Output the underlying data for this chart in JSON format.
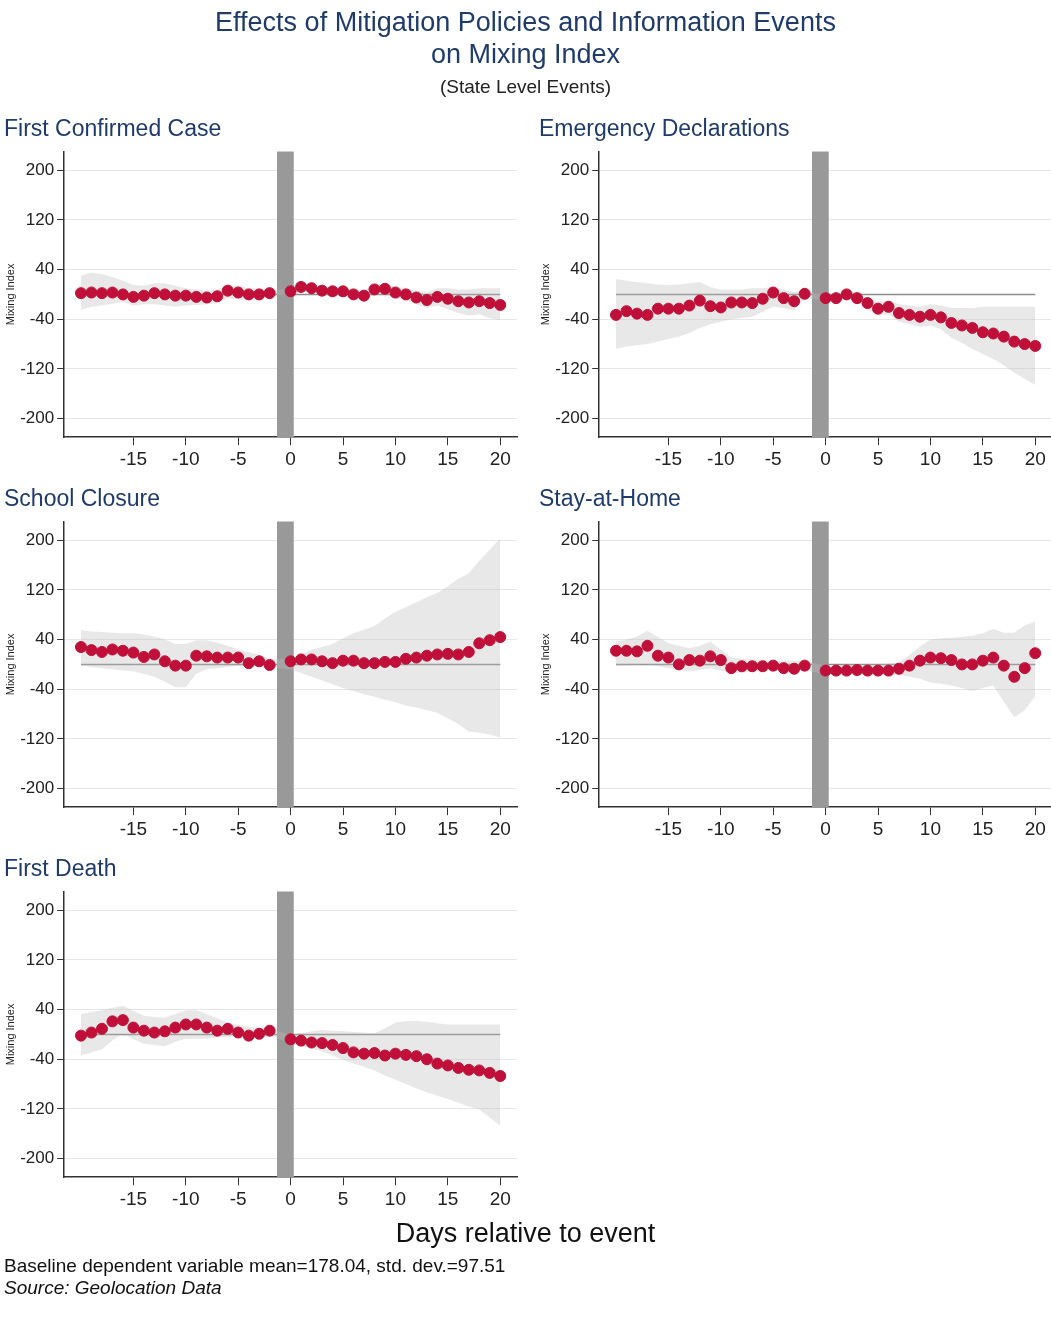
{
  "chart_data": [
    {
      "type": "other",
      "title": "Effects of Mitigation Policies and Information Events\non Mixing Index",
      "subtitle": "(State Level Events)"
    },
    {
      "type": "scatter",
      "title": "First Confirmed Case",
      "ylabel": "Mixing Index",
      "x": [
        -20,
        -19,
        -18,
        -17,
        -16,
        -15,
        -14,
        -13,
        -12,
        -11,
        -10,
        -9,
        -8,
        -7,
        -6,
        -5,
        -4,
        -3,
        -2,
        0,
        1,
        2,
        3,
        4,
        5,
        6,
        7,
        8,
        9,
        10,
        11,
        12,
        13,
        14,
        15,
        16,
        17,
        18,
        19,
        20
      ],
      "xlim": [
        -21.6,
        21.6
      ],
      "xticks": [
        -15,
        -10,
        -5,
        0,
        5,
        10,
        15,
        20
      ],
      "ylim": [
        -230,
        230
      ],
      "yticks": [
        -200,
        -120,
        -40,
        40,
        120,
        200
      ],
      "grid": "y",
      "marker": "circle",
      "series": [
        {
          "color": "#c0103a",
          "values": [
            2,
            3,
            2,
            3,
            0,
            -4,
            -2,
            2,
            0,
            -2,
            -2,
            -4,
            -5,
            -3,
            6,
            3,
            0,
            0,
            2,
            5,
            12,
            10,
            6,
            5,
            5,
            0,
            -2,
            8,
            9,
            3,
            0,
            -5,
            -9,
            -4,
            -7,
            -11,
            -13,
            -11,
            -14,
            -17
          ],
          "upper": [
            30,
            35,
            33,
            28,
            22,
            15,
            14,
            18,
            18,
            14,
            10,
            8,
            6,
            8,
            16,
            14,
            10,
            10,
            8,
            8,
            18,
            16,
            12,
            12,
            12,
            8,
            6,
            16,
            18,
            12,
            10,
            6,
            4,
            10,
            10,
            8,
            8,
            10,
            10,
            10
          ],
          "lower": [
            -25,
            -20,
            -18,
            -15,
            -12,
            -18,
            -16,
            -16,
            -18,
            -20,
            -18,
            -17,
            -16,
            -14,
            -6,
            -8,
            -10,
            -10,
            -4,
            2,
            6,
            4,
            0,
            -2,
            -2,
            -8,
            -10,
            0,
            0,
            -6,
            -10,
            -16,
            -22,
            -18,
            -24,
            -30,
            -34,
            -32,
            -38,
            -42
          ]
        }
      ],
      "ref_lines": [
        {
          "axis": "y",
          "value": 0,
          "color": "#8c8c8c"
        }
      ],
      "bands": [
        {
          "axis": "x",
          "from": -1.3,
          "to": 0.3,
          "color": "#999999"
        }
      ]
    },
    {
      "type": "scatter",
      "title": "Emergency Declarations",
      "ylabel": "Mixing Index",
      "x": [
        -20,
        -19,
        -18,
        -17,
        -16,
        -15,
        -14,
        -13,
        -12,
        -11,
        -10,
        -9,
        -8,
        -7,
        -6,
        -5,
        -4,
        -3,
        -2,
        0,
        1,
        2,
        3,
        4,
        5,
        6,
        7,
        8,
        9,
        10,
        11,
        12,
        13,
        14,
        15,
        16,
        17,
        18,
        19,
        20
      ],
      "xlim": [
        -21.6,
        21.6
      ],
      "xticks": [
        -15,
        -10,
        -5,
        0,
        5,
        10,
        15,
        20
      ],
      "ylim": [
        -230,
        230
      ],
      "yticks": [
        -200,
        -120,
        -40,
        40,
        120,
        200
      ],
      "grid": "y",
      "marker": "circle",
      "series": [
        {
          "color": "#c0103a",
          "values": [
            -33,
            -27,
            -31,
            -33,
            -23,
            -23,
            -23,
            -18,
            -10,
            -19,
            -21,
            -13,
            -13,
            -14,
            -7,
            3,
            -6,
            -11,
            1,
            -6,
            -6,
            0,
            -6,
            -14,
            -23,
            -20,
            -30,
            -33,
            -36,
            -33,
            -37,
            -46,
            -50,
            -54,
            -61,
            -63,
            -68,
            -76,
            -80,
            -83
          ],
          "upper": [
            25,
            22,
            20,
            18,
            16,
            15,
            16,
            18,
            20,
            12,
            8,
            8,
            8,
            10,
            10,
            12,
            8,
            4,
            6,
            -2,
            -2,
            6,
            2,
            -6,
            -12,
            -10,
            -16,
            -18,
            -20,
            -16,
            -18,
            -22,
            -22,
            -22,
            -20,
            -20,
            -20,
            -20,
            -20,
            -20
          ],
          "lower": [
            -88,
            -84,
            -82,
            -80,
            -76,
            -72,
            -68,
            -62,
            -54,
            -48,
            -44,
            -40,
            -38,
            -36,
            -28,
            -20,
            -22,
            -26,
            -6,
            -10,
            -10,
            -6,
            -12,
            -24,
            -34,
            -32,
            -44,
            -48,
            -52,
            -50,
            -56,
            -70,
            -78,
            -88,
            -96,
            -104,
            -114,
            -126,
            -136,
            -146
          ]
        }
      ],
      "ref_lines": [
        {
          "axis": "y",
          "value": 0,
          "color": "#8c8c8c"
        }
      ],
      "bands": [
        {
          "axis": "x",
          "from": -1.3,
          "to": 0.3,
          "color": "#999999"
        }
      ]
    },
    {
      "type": "scatter",
      "title": "School Closure",
      "ylabel": "Mixing Index",
      "x": [
        -20,
        -19,
        -18,
        -17,
        -16,
        -15,
        -14,
        -13,
        -12,
        -11,
        -10,
        -9,
        -8,
        -7,
        -6,
        -5,
        -4,
        -3,
        -2,
        0,
        1,
        2,
        3,
        4,
        5,
        6,
        7,
        8,
        9,
        10,
        11,
        12,
        13,
        14,
        15,
        16,
        17,
        18,
        19,
        20
      ],
      "xlim": [
        -21.6,
        21.6
      ],
      "xticks": [
        -15,
        -10,
        -5,
        0,
        5,
        10,
        15,
        20
      ],
      "ylim": [
        -230,
        230
      ],
      "yticks": [
        -200,
        -120,
        -40,
        40,
        120,
        200
      ],
      "grid": "y",
      "marker": "circle",
      "series": [
        {
          "color": "#c0103a",
          "values": [
            28,
            23,
            20,
            24,
            22,
            19,
            12,
            16,
            5,
            -2,
            -2,
            14,
            13,
            11,
            11,
            11,
            2,
            5,
            -1,
            5,
            8,
            8,
            5,
            2,
            6,
            6,
            2,
            2,
            4,
            4,
            9,
            11,
            14,
            16,
            17,
            16,
            20,
            34,
            39,
            44
          ],
          "upper": [
            55,
            53,
            52,
            51,
            50,
            50,
            48,
            45,
            40,
            33,
            33,
            39,
            39,
            35,
            30,
            24,
            20,
            15,
            9,
            9,
            16,
            24,
            28,
            33,
            42,
            50,
            56,
            62,
            74,
            85,
            92,
            100,
            108,
            115,
            126,
            138,
            147,
            167,
            185,
            203
          ],
          "lower": [
            -2,
            -4,
            -6,
            -8,
            -10,
            -11,
            -15,
            -20,
            -28,
            -37,
            -37,
            -15,
            -8,
            -6,
            -4,
            -2,
            -3,
            -4,
            -5,
            -8,
            -14,
            -20,
            -26,
            -32,
            -38,
            -43,
            -48,
            -52,
            -57,
            -61,
            -66,
            -70,
            -74,
            -78,
            -87,
            -96,
            -108,
            -110,
            -113,
            -118
          ]
        }
      ],
      "ref_lines": [
        {
          "axis": "y",
          "value": 0,
          "color": "#8c8c8c"
        }
      ],
      "bands": [
        {
          "axis": "x",
          "from": -1.3,
          "to": 0.3,
          "color": "#999999"
        }
      ]
    },
    {
      "type": "scatter",
      "title": "Stay-at-Home",
      "ylabel": "Mixing Index",
      "x": [
        -20,
        -19,
        -18,
        -17,
        -16,
        -15,
        -14,
        -13,
        -12,
        -11,
        -10,
        -9,
        -8,
        -7,
        -6,
        -5,
        -4,
        -3,
        -2,
        0,
        1,
        2,
        3,
        4,
        5,
        6,
        7,
        8,
        9,
        10,
        11,
        12,
        13,
        14,
        15,
        16,
        17,
        18,
        19,
        20
      ],
      "xlim": [
        -21.6,
        21.6
      ],
      "xticks": [
        -15,
        -10,
        -5,
        0,
        5,
        10,
        15,
        20
      ],
      "ylim": [
        -230,
        230
      ],
      "yticks": [
        -200,
        -120,
        -40,
        40,
        120,
        200
      ],
      "grid": "y",
      "marker": "circle",
      "series": [
        {
          "color": "#c0103a",
          "values": [
            22,
            22,
            21,
            30,
            14,
            11,
            0,
            7,
            6,
            13,
            7,
            -6,
            -3,
            -3,
            -3,
            -2,
            -6,
            -7,
            -2,
            -10,
            -10,
            -10,
            -9,
            -10,
            -10,
            -10,
            -7,
            -2,
            6,
            11,
            10,
            7,
            0,
            0,
            6,
            11,
            -2,
            -20,
            -6,
            18
          ],
          "upper": [
            37,
            40,
            45,
            54,
            44,
            34,
            30,
            26,
            30,
            37,
            24,
            11,
            9,
            8,
            7,
            6,
            6,
            6,
            6,
            -3,
            -2,
            -1,
            0,
            0,
            0,
            1,
            3,
            15,
            29,
            40,
            42,
            43,
            44,
            46,
            50,
            57,
            51,
            51,
            63,
            69
          ],
          "lower": [
            -3,
            -2,
            -1,
            0,
            -3,
            -6,
            -9,
            -11,
            -9,
            -6,
            -10,
            -14,
            -13,
            -12,
            -11,
            -10,
            -10,
            -9,
            -9,
            -17,
            -17,
            -17,
            -17,
            -17,
            -17,
            -17,
            -17,
            -20,
            -23,
            -29,
            -31,
            -34,
            -38,
            -43,
            -38,
            -34,
            -60,
            -85,
            -74,
            -51
          ]
        }
      ],
      "ref_lines": [
        {
          "axis": "y",
          "value": 0,
          "color": "#8c8c8c"
        }
      ],
      "bands": [
        {
          "axis": "x",
          "from": -1.3,
          "to": 0.3,
          "color": "#999999"
        }
      ]
    },
    {
      "type": "scatter",
      "title": "First Death",
      "ylabel": "Mixing Index",
      "xlabel": "Days relative to event",
      "annotations": [
        "Baseline dependent variable mean=178.04, std. dev.=97.51",
        "Source: Geolocation Data"
      ],
      "x": [
        -20,
        -19,
        -18,
        -17,
        -16,
        -15,
        -14,
        -13,
        -12,
        -11,
        -10,
        -9,
        -8,
        -7,
        -6,
        -5,
        -4,
        -3,
        -2,
        0,
        1,
        2,
        3,
        4,
        5,
        6,
        7,
        8,
        9,
        10,
        11,
        12,
        13,
        14,
        15,
        16,
        17,
        18,
        19,
        20
      ],
      "xlim": [
        -21.6,
        21.6
      ],
      "xticks": [
        -15,
        -10,
        -5,
        0,
        5,
        10,
        15,
        20
      ],
      "ylim": [
        -230,
        230
      ],
      "yticks": [
        -200,
        -120,
        -40,
        40,
        120,
        200
      ],
      "grid": "y",
      "marker": "circle",
      "series": [
        {
          "color": "#c0103a",
          "values": [
            -2,
            3,
            9,
            21,
            23,
            11,
            6,
            3,
            5,
            11,
            16,
            16,
            11,
            6,
            9,
            3,
            -2,
            1,
            6,
            -8,
            -10,
            -13,
            -14,
            -17,
            -22,
            -29,
            -31,
            -30,
            -34,
            -31,
            -33,
            -35,
            -40,
            -47,
            -50,
            -54,
            -57,
            -58,
            -62,
            -67
          ],
          "upper": [
            33,
            36,
            39,
            43,
            46,
            38,
            30,
            28,
            27,
            33,
            39,
            39,
            33,
            26,
            19,
            15,
            12,
            11,
            10,
            -1,
            2,
            5,
            7,
            6,
            5,
            4,
            3,
            2,
            10,
            19,
            21,
            22,
            20,
            18,
            16,
            16,
            16,
            16,
            16,
            16
          ],
          "lower": [
            -34,
            -29,
            -24,
            -10,
            2,
            -8,
            -15,
            -17,
            -19,
            -12,
            -7,
            -7,
            -7,
            -5,
            -4,
            -3,
            -2,
            -1,
            -1,
            -15,
            -19,
            -23,
            -27,
            -34,
            -41,
            -47,
            -52,
            -58,
            -66,
            -73,
            -80,
            -87,
            -93,
            -99,
            -104,
            -110,
            -116,
            -121,
            -134,
            -147
          ]
        }
      ],
      "ref_lines": [
        {
          "axis": "y",
          "value": 0,
          "color": "#8c8c8c"
        }
      ],
      "bands": [
        {
          "axis": "x",
          "from": -1.3,
          "to": 0.3,
          "color": "#999999"
        }
      ]
    }
  ]
}
